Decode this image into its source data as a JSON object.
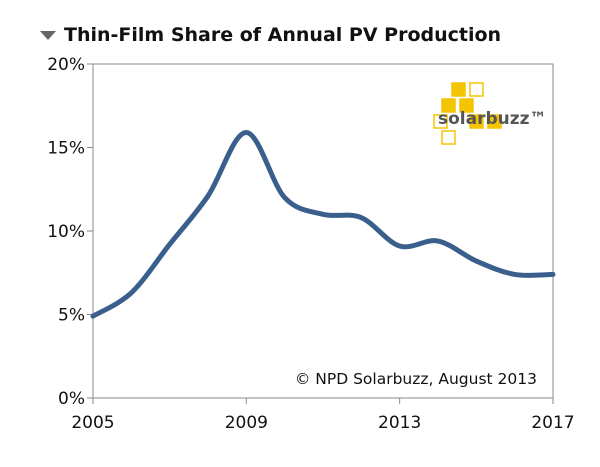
{
  "chart_data": {
    "type": "line",
    "title": "Thin-Film Share of Annual PV Production",
    "xlabel": "",
    "ylabel": "",
    "x": [
      2005,
      2006,
      2007,
      2008,
      2009,
      2010,
      2011,
      2012,
      2013,
      2014,
      2015,
      2016,
      2017
    ],
    "x_ticks": [
      "2005",
      "2009",
      "2013",
      "2017"
    ],
    "xlim": [
      2005,
      2017
    ],
    "y_ticks": [
      "0%",
      "5%",
      "10%",
      "15%",
      "20%"
    ],
    "ylim": [
      0,
      20
    ],
    "series": [
      {
        "values": [
          4.9,
          6.3,
          9.2,
          12.1,
          15.9,
          12.0,
          11.0,
          10.8,
          9.1,
          9.4,
          8.2,
          7.4,
          7.4
        ],
        "color": "#3b5f8c"
      }
    ],
    "annotation": "© NPD Solarbuzz, August 2013",
    "logo_text": "solarbuzz™",
    "grid": false
  },
  "colors": {
    "line": "#3b5f8c",
    "axis": "#888888",
    "logo_yellow": "#f5c400"
  }
}
